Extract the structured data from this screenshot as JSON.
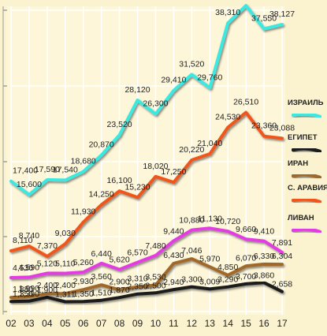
{
  "chart_data": {
    "type": "line",
    "title": "",
    "xlabel": "",
    "ylabel": "",
    "grid": true,
    "legend_position": "right",
    "x": [
      "02",
      "03",
      "04",
      "05",
      "06",
      "07",
      "08",
      "09",
      "10",
      "11",
      "12",
      "13",
      "14",
      "15",
      "16",
      "17"
    ],
    "series": [
      {
        "name": "ИЗРАИЛЬ",
        "color": "#3de8e0",
        "values": [
          17400,
          15600,
          17590,
          17540,
          18680,
          20870,
          23520,
          28120,
          26300,
          29410,
          31520,
          29760,
          38310,
          40620,
          37550,
          38127
        ],
        "labels": [
          "17,400",
          "15,600",
          "17,590",
          "17,540",
          "18,680",
          "20,870",
          "23,520",
          "28,120",
          "26,300",
          "29,410",
          "31,520",
          "29,760",
          "38,310",
          "40,620",
          "37,550",
          "38,127"
        ]
      },
      {
        "name": "ЕГИПЕТ",
        "color": "#1a1a1a",
        "values": [
          1350,
          1390,
          1900,
          1311,
          1350,
          1510,
          1870,
          2350,
          2500,
          2940,
          3300,
          3009,
          3290,
          3700,
          3860,
          2658
        ],
        "labels": [
          "1,350",
          "1,390",
          "1,900",
          "1,311",
          "1,350",
          "1,510",
          "1,870",
          "2,350",
          "2,500",
          "2,940",
          "3,300",
          "3,009",
          "3,290",
          "3,700",
          "3,860",
          "2,658"
        ]
      },
      {
        "name": "ИРАН",
        "color": "#a0682a",
        "values": [
          1880,
          1990,
          2400,
          2400,
          2930,
          3560,
          2900,
          3310,
          3530,
          6430,
          7046,
          5970,
          4850,
          6070,
          6330,
          6304
        ],
        "labels": [
          "1,880",
          "1,990",
          "2,400",
          "2,400",
          "2,930",
          "3,560",
          "2,900",
          "3,310",
          "3,530",
          "6,430",
          "7,046",
          "5,970",
          "4,850",
          "6,070",
          "6,330",
          "6,304"
        ]
      },
      {
        "name": "С. АРАВИЯ",
        "color": "#f0561b",
        "values": [
          8110,
          8740,
          7370,
          9030,
          11930,
          14250,
          16100,
          15230,
          18020,
          17250,
          20220,
          21040,
          24530,
          26510,
          23360,
          23088
        ],
        "labels": [
          "8,110",
          "8,740",
          "7,370",
          "9,030",
          "11,930",
          "14,250",
          "16,100",
          "15,230",
          "18,020",
          "17,250",
          "20,220",
          "21,040",
          "24,530",
          "26,510",
          "23,360",
          "23,088"
        ]
      },
      {
        "name": "ЛИВАН",
        "color": "#e23ce2",
        "values": [
          4530,
          4590,
          5120,
          5110,
          5260,
          6440,
          5620,
          6570,
          7480,
          9440,
          10880,
          11130,
          10720,
          9660,
          9410,
          7891
        ],
        "labels": [
          "4,530",
          "4,590",
          "5,120",
          "5,110",
          "5,260",
          "6,440",
          "5,620",
          "6,570",
          "7,480",
          "9,440",
          "10,880",
          "11,130",
          "10,720",
          "9,660",
          "9,410",
          "7,891"
        ]
      }
    ]
  }
}
